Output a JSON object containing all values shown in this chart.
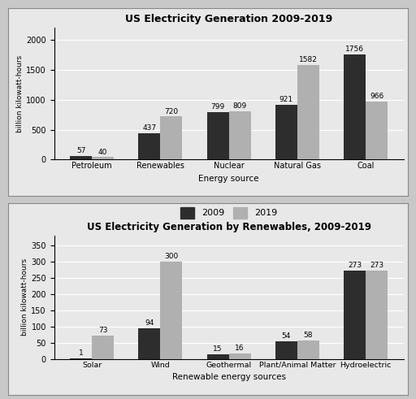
{
  "chart1": {
    "title": "US Electricity Generation 2009-2019",
    "categories": [
      "Petroleum",
      "Renewables",
      "Nuclear",
      "Natural Gas",
      "Coal"
    ],
    "values_2009": [
      57,
      437,
      799,
      921,
      1756
    ],
    "values_2019": [
      40,
      720,
      809,
      1582,
      966
    ],
    "xlabel": "Energy source",
    "ylabel": "billion kilowatt-hours",
    "ylim": [
      0,
      2200
    ],
    "yticks": [
      0,
      500,
      1000,
      1500,
      2000
    ],
    "color_2009": "#2d2d2d",
    "color_2019": "#b0b0b0"
  },
  "chart2": {
    "title": "US Electricity Generation by Renewables, 2009-2019",
    "categories": [
      "Solar",
      "Wind",
      "Geothermal",
      "Plant/Animal Matter",
      "Hydroelectric"
    ],
    "values_2009": [
      1,
      94,
      15,
      54,
      273
    ],
    "values_2019": [
      73,
      300,
      16,
      58,
      273
    ],
    "xlabel": "Renewable energy sources",
    "ylabel": "billion kilowatt-hours",
    "ylim": [
      0,
      380
    ],
    "yticks": [
      0,
      50,
      100,
      150,
      200,
      250,
      300,
      350
    ],
    "color_2009": "#2d2d2d",
    "color_2019": "#b0b0b0"
  },
  "bar_width": 0.32,
  "legend_2009": "2009",
  "legend_2019": "2019",
  "panel_bg": "#e8e8e8",
  "plot_bg": "#e8e8e8",
  "figure_bg": "#c8c8c8"
}
